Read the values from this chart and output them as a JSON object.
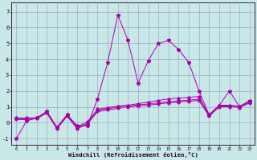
{
  "x": [
    0,
    1,
    2,
    3,
    4,
    5,
    6,
    7,
    8,
    9,
    10,
    11,
    12,
    13,
    14,
    15,
    16,
    17,
    18,
    19,
    20,
    21,
    22,
    23
  ],
  "y_main": [
    -1.0,
    0.1,
    0.3,
    0.7,
    -0.3,
    0.5,
    -0.2,
    -0.2,
    1.5,
    3.8,
    6.8,
    5.2,
    2.5,
    3.9,
    5.0,
    5.2,
    4.6,
    3.8,
    2.0,
    0.5,
    1.1,
    2.0,
    1.0,
    1.4
  ],
  "y_flat1": [
    0.3,
    0.3,
    0.3,
    0.7,
    -0.3,
    0.5,
    -0.25,
    0.05,
    0.85,
    0.95,
    1.05,
    1.1,
    1.2,
    1.3,
    1.4,
    1.5,
    1.55,
    1.6,
    1.65,
    0.5,
    1.1,
    1.1,
    1.05,
    1.35
  ],
  "y_flat2": [
    0.25,
    0.25,
    0.3,
    0.65,
    -0.35,
    0.45,
    -0.32,
    -0.05,
    0.78,
    0.88,
    0.98,
    1.05,
    1.12,
    1.18,
    1.25,
    1.32,
    1.38,
    1.42,
    1.48,
    0.45,
    1.05,
    1.05,
    1.0,
    1.3
  ],
  "y_flat3": [
    0.2,
    0.2,
    0.25,
    0.6,
    -0.38,
    0.4,
    -0.38,
    -0.1,
    0.7,
    0.8,
    0.9,
    0.98,
    1.05,
    1.1,
    1.18,
    1.25,
    1.3,
    1.35,
    1.4,
    0.4,
    1.0,
    1.0,
    0.95,
    1.25
  ],
  "bg_color": "#c8e8e8",
  "line_color": "#aa00aa",
  "grid_color": "#9999bb",
  "xlabel": "Windchill (Refroidissement éolien,°C)",
  "xlim": [
    -0.5,
    23.5
  ],
  "ylim": [
    -1.4,
    7.6
  ],
  "yticks": [
    -1,
    0,
    1,
    2,
    3,
    4,
    5,
    6,
    7
  ]
}
